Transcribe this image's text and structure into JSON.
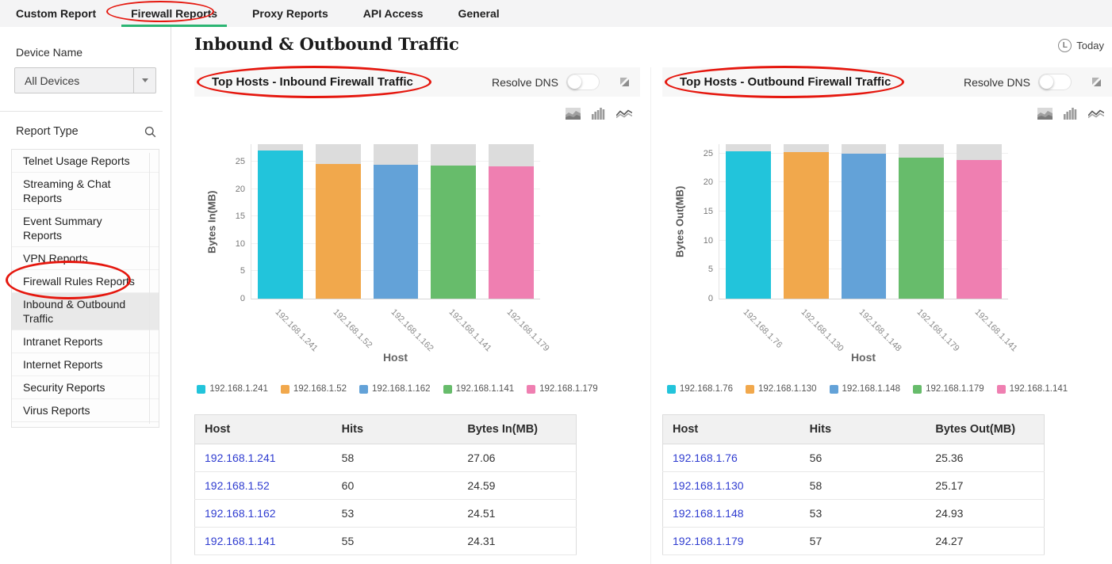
{
  "colors": {
    "accent_green": "#2bb573",
    "annotation_red": "#e5170e",
    "bar_colors": [
      "#22c4db",
      "#f1a84c",
      "#63a2d8",
      "#67bc6b",
      "#ef7fb1"
    ],
    "bar_track": "#dcdcdc",
    "link_blue": "#2f3cd0",
    "panel_header_bg": "#f7f7f7"
  },
  "icons": {
    "period": "clock-icon",
    "period_glyph": "L",
    "search": "search-icon",
    "dropdown": "chevron-down-icon",
    "expand": "expand-icon",
    "chart_types": [
      "area-chart-icon",
      "bar-chart-icon",
      "line-chart-icon"
    ]
  },
  "tabs": {
    "items": [
      {
        "label": "Custom Report",
        "active": false
      },
      {
        "label": "Firewall Reports",
        "active": true
      },
      {
        "label": "Proxy Reports",
        "active": false
      },
      {
        "label": "API Access",
        "active": false
      },
      {
        "label": "General",
        "active": false
      }
    ]
  },
  "sidebar": {
    "device_name_label": "Device Name",
    "device_select": {
      "value": "All Devices"
    },
    "report_type_label": "Report Type",
    "report_items": [
      {
        "label": "Telnet Usage Reports",
        "selected": false
      },
      {
        "label": "Streaming & Chat Reports",
        "selected": false
      },
      {
        "label": "Event Summary Reports",
        "selected": false
      },
      {
        "label": "VPN Reports",
        "selected": false
      },
      {
        "label": "Firewall Rules Reports",
        "selected": false
      },
      {
        "label": "Inbound & Outbound Traffic",
        "selected": true
      },
      {
        "label": "Intranet Reports",
        "selected": false
      },
      {
        "label": "Internet Reports",
        "selected": false
      },
      {
        "label": "Security Reports",
        "selected": false
      },
      {
        "label": "Virus Reports",
        "selected": false
      }
    ]
  },
  "page": {
    "title": "Inbound & Outbound Traffic",
    "period": {
      "label": "Today"
    }
  },
  "panels": [
    {
      "title": "Top Hosts - Inbound Firewall Traffic",
      "resolve_dns_label": "Resolve DNS",
      "resolve_dns_state": "off",
      "chart_data": {
        "type": "bar",
        "categories": [
          "192.168.1.241",
          "192.168.1.52",
          "192.168.1.162",
          "192.168.1.141",
          "192.168.1.179"
        ],
        "values": [
          27.06,
          24.59,
          24.51,
          24.31,
          24.1
        ],
        "title": "Top Hosts - Inbound Firewall Traffic",
        "xlabel": "Host",
        "ylabel": "Bytes In(MB)",
        "yticks": [
          0,
          5,
          10,
          15,
          20,
          25
        ],
        "ylim": [
          0,
          28.2
        ],
        "grid": true,
        "legend": [
          "192.168.1.241",
          "192.168.1.52",
          "192.168.1.162",
          "192.168.1.141",
          "192.168.1.179"
        ],
        "legend_position": "bottom"
      },
      "table": {
        "headers": [
          "Host",
          "Hits",
          "Bytes In(MB)"
        ],
        "rows": [
          [
            "192.168.1.241",
            "58",
            "27.06"
          ],
          [
            "192.168.1.52",
            "60",
            "24.59"
          ],
          [
            "192.168.1.162",
            "53",
            "24.51"
          ],
          [
            "192.168.1.141",
            "55",
            "24.31"
          ]
        ]
      }
    },
    {
      "title": "Top Hosts - Outbound Firewall Traffic",
      "resolve_dns_label": "Resolve DNS",
      "resolve_dns_state": "off",
      "chart_data": {
        "type": "bar",
        "categories": [
          "192.168.1.76",
          "192.168.1.130",
          "192.168.1.148",
          "192.168.1.179",
          "192.168.1.141"
        ],
        "values": [
          25.36,
          25.17,
          24.93,
          24.27,
          23.9
        ],
        "title": "Top Hosts - Outbound Firewall Traffic",
        "xlabel": "Host",
        "ylabel": "Bytes Out(MB)",
        "yticks": [
          0,
          5,
          10,
          15,
          20,
          25
        ],
        "ylim": [
          0,
          26.6
        ],
        "grid": true,
        "legend": [
          "192.168.1.76",
          "192.168.1.130",
          "192.168.1.148",
          "192.168.1.179",
          "192.168.1.141"
        ],
        "legend_position": "bottom"
      },
      "table": {
        "headers": [
          "Host",
          "Hits",
          "Bytes Out(MB)"
        ],
        "rows": [
          [
            "192.168.1.76",
            "56",
            "25.36"
          ],
          [
            "192.168.1.130",
            "58",
            "25.17"
          ],
          [
            "192.168.1.148",
            "53",
            "24.93"
          ],
          [
            "192.168.1.179",
            "57",
            "24.27"
          ]
        ]
      }
    }
  ]
}
